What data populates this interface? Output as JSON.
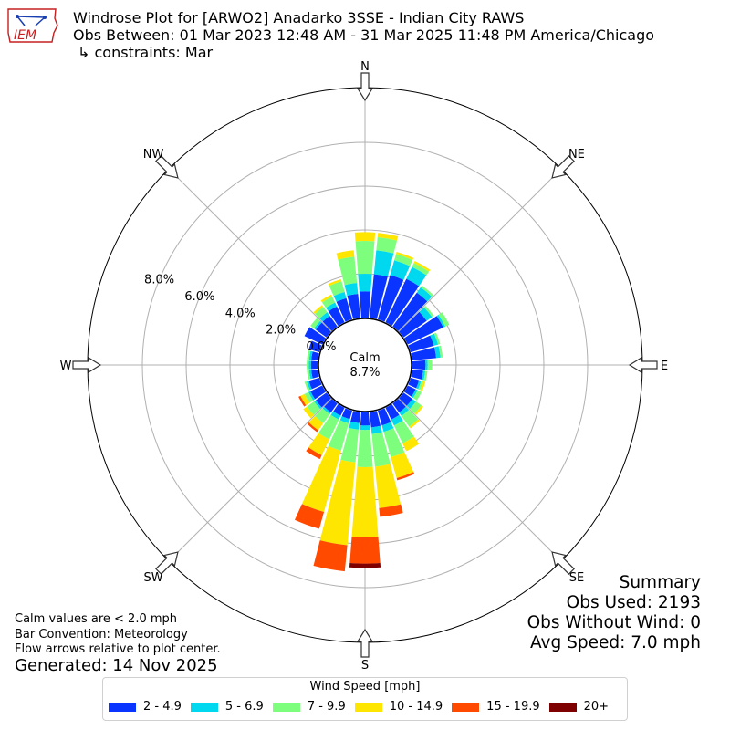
{
  "title": {
    "line1": "Windrose Plot for [ARWO2] Anadarko 3SSE - Indian City RAWS",
    "line2": "Obs Between: 01 Mar 2023 12:48 AM - 31 Mar 2025 11:48 PM America/Chicago",
    "line3": "↳ constraints: Mar"
  },
  "logo_text": "IEM",
  "summary": {
    "heading": "Summary",
    "obs_used": "Obs Used: 2193",
    "obs_without_wind": "Obs Without Wind: 0",
    "avg_speed": "Avg Speed: 7.0 mph"
  },
  "notes": {
    "calm_note": "Calm values are < 2.0 mph",
    "bar_convention": "Bar Convention: Meteorology",
    "flow_arrows": "Flow arrows relative to plot center."
  },
  "generated": "Generated: 14 Nov 2025",
  "legend": {
    "title": "Wind Speed [mph]",
    "items": [
      {
        "label": "2 - 4.9",
        "color": "#0a34ff"
      },
      {
        "label": "5 - 6.9",
        "color": "#00d8f0"
      },
      {
        "label": "7 - 9.9",
        "color": "#7dff7d"
      },
      {
        "label": "10 - 14.9",
        "color": "#ffe600"
      },
      {
        "label": "15 - 19.9",
        "color": "#ff4a00"
      },
      {
        "label": "20+",
        "color": "#7f0000"
      }
    ]
  },
  "chart_data": {
    "type": "windrose",
    "radial_unit": "%",
    "radial_ticks": [
      "0.0%",
      "2.0%",
      "4.0%",
      "6.0%",
      "8.0%"
    ],
    "radial_max": 10.5,
    "calm": {
      "label": "Calm",
      "value": "8.7%"
    },
    "directions": [
      "N",
      "NE",
      "E",
      "SE",
      "S",
      "SW",
      "W",
      "NW"
    ],
    "bin_width_deg": 10,
    "speed_bins": [
      "2 - 4.9",
      "5 - 6.9",
      "7 - 9.9",
      "10 - 14.9",
      "15 - 19.9",
      "20+"
    ],
    "series": [
      {
        "dir": 0,
        "values": [
          1.2,
          0.8,
          1.5,
          0.4,
          0,
          0
        ]
      },
      {
        "dir": 10,
        "values": [
          2.0,
          1.1,
          0.6,
          0.2,
          0,
          0
        ]
      },
      {
        "dir": 20,
        "values": [
          2.1,
          0.7,
          0.3,
          0.1,
          0,
          0
        ]
      },
      {
        "dir": 30,
        "values": [
          2.2,
          0.6,
          0.2,
          0.1,
          0,
          0
        ]
      },
      {
        "dir": 40,
        "values": [
          1.9,
          0.3,
          0.1,
          0,
          0,
          0
        ]
      },
      {
        "dir": 50,
        "values": [
          1.3,
          0.3,
          0.1,
          0,
          0,
          0
        ]
      },
      {
        "dir": 60,
        "values": [
          1.8,
          0.1,
          0.2,
          0,
          0,
          0
        ]
      },
      {
        "dir": 70,
        "values": [
          1.1,
          0.2,
          0.1,
          0,
          0,
          0
        ]
      },
      {
        "dir": 80,
        "values": [
          1.1,
          0.2,
          0.1,
          0,
          0,
          0
        ]
      },
      {
        "dir": 90,
        "values": [
          0.6,
          0.1,
          0.2,
          0,
          0,
          0
        ]
      },
      {
        "dir": 100,
        "values": [
          0.5,
          0.1,
          0.1,
          0,
          0,
          0
        ]
      },
      {
        "dir": 110,
        "values": [
          0.4,
          0.1,
          0.1,
          0.1,
          0,
          0
        ]
      },
      {
        "dir": 120,
        "values": [
          0.4,
          0.1,
          0.2,
          0,
          0,
          0
        ]
      },
      {
        "dir": 130,
        "values": [
          0.5,
          0.2,
          0.3,
          0.1,
          0,
          0
        ]
      },
      {
        "dir": 140,
        "values": [
          0.5,
          0.2,
          0.6,
          0.1,
          0,
          0
        ]
      },
      {
        "dir": 150,
        "values": [
          0.6,
          0.3,
          0.9,
          0.4,
          0,
          0
        ]
      },
      {
        "dir": 160,
        "values": [
          0.7,
          0.3,
          1.2,
          1.0,
          0.1,
          0
        ]
      },
      {
        "dir": 170,
        "values": [
          0.7,
          0.3,
          1.5,
          1.9,
          0.4,
          0
        ]
      },
      {
        "dir": 180,
        "values": [
          0.6,
          0.2,
          1.7,
          3.2,
          1.2,
          0.2
        ]
      },
      {
        "dir": 190,
        "values": [
          0.5,
          0.3,
          1.5,
          3.8,
          1.2,
          0
        ]
      },
      {
        "dir": 200,
        "values": [
          0.4,
          0.2,
          1.3,
          2.9,
          0.8,
          0
        ]
      },
      {
        "dir": 210,
        "values": [
          0.4,
          0.2,
          1.0,
          0.8,
          0.2,
          0
        ]
      },
      {
        "dir": 220,
        "values": [
          0.5,
          0.1,
          0.5,
          0.4,
          0.1,
          0
        ]
      },
      {
        "dir": 230,
        "values": [
          0.6,
          0.1,
          0.4,
          0.2,
          0,
          0
        ]
      },
      {
        "dir": 240,
        "values": [
          0.6,
          0.1,
          0.2,
          0.2,
          0.1,
          0
        ]
      },
      {
        "dir": 250,
        "values": [
          0.5,
          0.1,
          0.1,
          0,
          0,
          0
        ]
      },
      {
        "dir": 260,
        "values": [
          0.3,
          0.1,
          0.1,
          0,
          0,
          0
        ]
      },
      {
        "dir": 270,
        "values": [
          0.3,
          0.1,
          0.1,
          0,
          0,
          0
        ]
      },
      {
        "dir": 280,
        "values": [
          0.3,
          0.1,
          0.1,
          0,
          0,
          0
        ]
      },
      {
        "dir": 290,
        "values": [
          0.5,
          0,
          0,
          0,
          0,
          0
        ]
      },
      {
        "dir": 300,
        "values": [
          0.9,
          0,
          0,
          0,
          0,
          0
        ]
      },
      {
        "dir": 310,
        "values": [
          0.6,
          0.1,
          0.2,
          0,
          0,
          0
        ]
      },
      {
        "dir": 320,
        "values": [
          0.6,
          0.2,
          0.3,
          0.1,
          0,
          0
        ]
      },
      {
        "dir": 330,
        "values": [
          0.8,
          0.2,
          0.3,
          0.1,
          0,
          0
        ]
      },
      {
        "dir": 340,
        "values": [
          1.0,
          0.3,
          0.5,
          0.1,
          0,
          0
        ]
      },
      {
        "dir": 350,
        "values": [
          1.1,
          0.5,
          1.2,
          0.3,
          0,
          0
        ]
      }
    ]
  }
}
